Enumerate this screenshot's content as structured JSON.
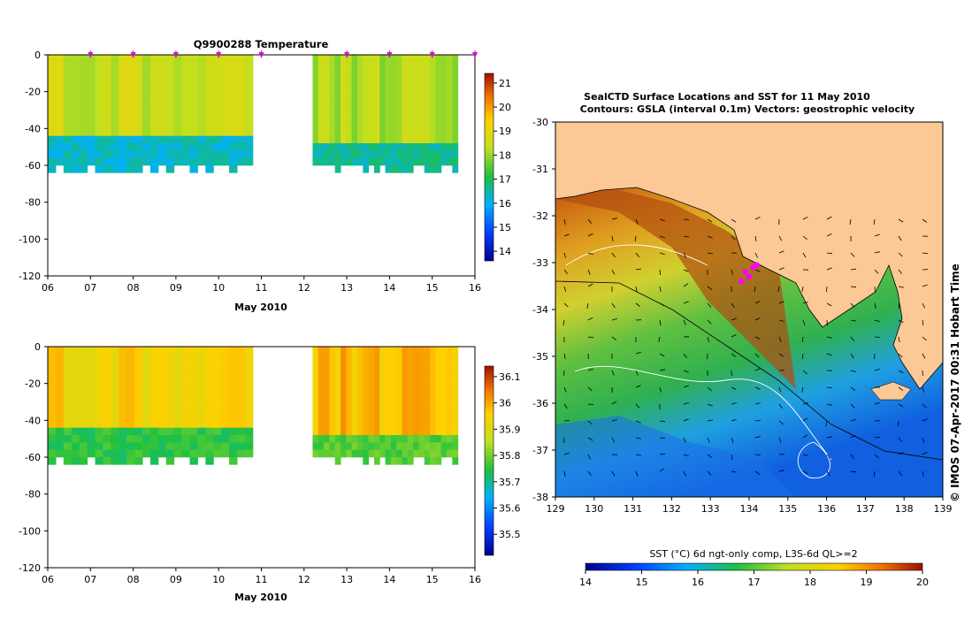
{
  "chart_data": [
    {
      "type": "heatmap",
      "title": "Q9900288  Temperature",
      "xlabel": "May 2010",
      "ylabel": "",
      "xlim": [
        6,
        16
      ],
      "ylim": [
        -120,
        0
      ],
      "x_ticks": [
        "06",
        "07",
        "08",
        "09",
        "10",
        "11",
        "12",
        "13",
        "14",
        "15",
        "16"
      ],
      "y_ticks": [
        "0",
        "-20",
        "-40",
        "-60",
        "-80",
        "-100",
        "-120"
      ],
      "colorbar": {
        "min": 13.6,
        "max": 21.4,
        "ticks": [
          "14",
          "15",
          "16",
          "17",
          "18",
          "19",
          "20",
          "21"
        ]
      },
      "profile_marker_days": [
        7,
        8,
        9,
        10,
        11,
        13,
        14,
        15,
        16
      ],
      "segments": [
        {
          "name": "profiles-1",
          "x_start": 6.0,
          "x_end": 10.8,
          "surface_value": 18.5,
          "thermocline_depth": -44,
          "deep_value": 16.3,
          "max_depth": -58
        },
        {
          "name": "profiles-2",
          "x_start": 12.2,
          "x_end": 15.6,
          "surface_value": 18.2,
          "thermocline_depth": -46,
          "deep_value": 16.6,
          "max_depth": -58
        }
      ]
    },
    {
      "type": "heatmap",
      "title": "",
      "xlabel": "May 2010",
      "ylabel": "",
      "xlim": [
        6,
        16
      ],
      "ylim": [
        -120,
        0
      ],
      "x_ticks": [
        "06",
        "07",
        "08",
        "09",
        "10",
        "11",
        "12",
        "13",
        "14",
        "15",
        "16"
      ],
      "y_ticks": [
        "0",
        "-20",
        "-40",
        "-60",
        "-80",
        "-100",
        "-120"
      ],
      "colorbar": {
        "min": 35.42,
        "max": 36.14,
        "ticks": [
          "35.5",
          "35.6",
          "35.7",
          "35.8",
          "35.9",
          "36",
          "36.1"
        ]
      },
      "segments": [
        {
          "name": "profiles-1",
          "x_start": 6.0,
          "x_end": 10.8,
          "surface_value": 35.95,
          "thermocline_depth": -44,
          "deep_value": 35.75,
          "max_depth": -58
        },
        {
          "name": "profiles-2",
          "x_start": 12.2,
          "x_end": 15.6,
          "surface_value": 35.98,
          "thermocline_depth": -46,
          "deep_value": 35.78,
          "max_depth": -58
        }
      ]
    },
    {
      "type": "heatmap",
      "title_line1": "SealCTD Surface Locations and SST for 11 May 2010",
      "title_line2": "Contours: GSLA (interval 0.1m) Vectors: geostrophic velocity",
      "xlim": [
        129,
        139
      ],
      "ylim": [
        -38,
        -30
      ],
      "x_ticks": [
        "129",
        "130",
        "131",
        "132",
        "133",
        "134",
        "135",
        "136",
        "137",
        "138",
        "139"
      ],
      "y_ticks": [
        "-30",
        "-31",
        "-32",
        "-33",
        "-34",
        "-35",
        "-36",
        "-37",
        "-38"
      ],
      "colorbar": {
        "label": "SST (°C) 6d ngt-only comp, L3S-6d QL>=2",
        "min": 14,
        "max": 20,
        "ticks": [
          "14",
          "15",
          "16",
          "17",
          "18",
          "19",
          "20"
        ]
      },
      "seal_locations": [
        [
          133.9,
          -33.2
        ],
        [
          134.0,
          -33.3
        ],
        [
          134.1,
          -33.1
        ],
        [
          133.8,
          -33.4
        ],
        [
          134.2,
          -33.05
        ]
      ],
      "credit": "© IMOS 07-Apr-2017 00:31 Hobart Time"
    }
  ]
}
